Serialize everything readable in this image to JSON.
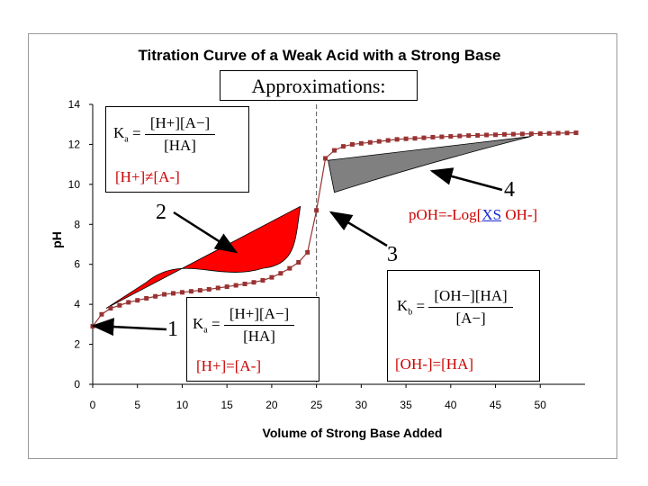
{
  "chart_data": {
    "type": "line",
    "title": "Titration Curve of a Weak Acid with a Strong Base",
    "xlabel": "Volume of Strong Base Added",
    "ylabel": "pH",
    "xlim": [
      0,
      55
    ],
    "ylim": [
      0,
      14
    ],
    "xticks": [
      0,
      5,
      10,
      15,
      20,
      25,
      30,
      35,
      40,
      45,
      50
    ],
    "yticks": [
      0,
      2,
      4,
      6,
      8,
      10,
      12,
      14
    ],
    "equivalence_line_x": 25,
    "series": [
      {
        "name": "pH",
        "color": "#993333",
        "x": [
          0,
          1,
          2,
          3,
          4,
          5,
          6,
          7,
          8,
          9,
          10,
          11,
          12,
          13,
          14,
          15,
          16,
          17,
          18,
          19,
          20,
          21,
          22,
          23,
          24,
          25,
          26,
          27,
          28,
          29,
          30,
          31,
          32,
          33,
          34,
          35,
          36,
          37,
          38,
          39,
          40,
          41,
          42,
          43,
          44,
          45,
          46,
          47,
          48,
          49,
          50,
          51,
          52,
          53,
          54
        ],
        "y": [
          2.9,
          3.5,
          3.8,
          3.95,
          4.1,
          4.2,
          4.3,
          4.4,
          4.5,
          4.55,
          4.6,
          4.65,
          4.7,
          4.75,
          4.82,
          4.88,
          4.95,
          5.02,
          5.1,
          5.2,
          5.35,
          5.55,
          5.8,
          6.1,
          6.6,
          8.7,
          11.3,
          11.7,
          11.9,
          12.0,
          12.05,
          12.1,
          12.15,
          12.2,
          12.25,
          12.28,
          12.3,
          12.33,
          12.36,
          12.38,
          12.4,
          12.42,
          12.44,
          12.45,
          12.47,
          12.48,
          12.5,
          12.51,
          12.52,
          12.53,
          12.54,
          12.55,
          12.56,
          12.57,
          12.58
        ]
      }
    ],
    "regions": [
      {
        "name": "buffer approximation error",
        "color": "#ff0000",
        "x": [
          1.5,
          23.2
        ],
        "upper": [
          3.8,
          8.9
        ],
        "lower": [
          3.8,
          6.6
        ]
      },
      {
        "name": "excess base approximation error",
        "color": "#808080",
        "x": [
          26.3,
          49
        ],
        "upper": [
          11.2,
          12.4
        ],
        "lower": [
          9.6,
          12.4
        ]
      }
    ]
  },
  "approx_label": "Approximations:",
  "ka_box1": {
    "lhs": "Ka",
    "num": "[H+][A−]",
    "den": "[HA]",
    "cond": "[H+]≠[A-]"
  },
  "ka_box2": {
    "lhs": "Ka",
    "num": "[H+][A−]",
    "den": "[HA]",
    "cond": "[H+]=[A-]"
  },
  "kb_box": {
    "lhs": "Kb",
    "num": "[OH−][HA]",
    "den": "[A−]",
    "cond": "[OH-]=[HA]"
  },
  "poh_text": {
    "pre": "pOH=-Log[",
    "xs": "XS",
    "post": " OH-]"
  },
  "callouts": [
    "1",
    "2",
    "3",
    "4"
  ]
}
